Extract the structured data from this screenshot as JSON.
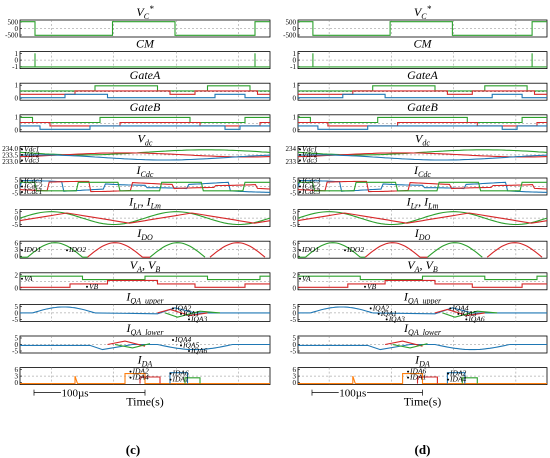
{
  "figure": {
    "panels": [
      {
        "label": "(c)",
        "time_label": "Time(s)",
        "scale_label": "100µs",
        "rows": [
          {
            "title": "V_C*",
            "title_main": "V",
            "title_sub": "C",
            "title_sup": "*",
            "ticks": [
              "500",
              "0",
              "-500"
            ],
            "annotations": []
          },
          {
            "title": "CM",
            "title_main": "CM",
            "ticks": [
              "1",
              "0",
              "-1"
            ],
            "annotations": []
          },
          {
            "title": "GateA",
            "title_main": "GateA",
            "ticks": [
              "1",
              "0"
            ],
            "annotations": []
          },
          {
            "title": "GateB",
            "title_main": "GateB",
            "ticks": [
              "1",
              "0"
            ],
            "annotations": []
          },
          {
            "title": "V_dc",
            "title_main": "V",
            "title_sub": "dc",
            "ticks": [
              "234.0",
              "233.5",
              "233.0"
            ],
            "annotations": [
              "Vdc1",
              "Vdc2",
              "Vdc3"
            ]
          },
          {
            "title": "I_Cdc",
            "title_main": "I",
            "title_sub": "Cdc",
            "ticks": [
              "5",
              "0",
              "-5"
            ],
            "annotations": [
              "ICdc3",
              "ICdc2",
              "ICdc1"
            ]
          },
          {
            "title": "I_Lr, I_Lm",
            "title_main": "I",
            "title_sub": "Lr",
            "title_rest": ", I",
            "title_sub2": "Lm",
            "ticks": [
              "5",
              "0",
              "-5"
            ],
            "annotations": []
          },
          {
            "title": "I_DO",
            "title_main": "I",
            "title_sub": "DO",
            "ticks": [
              "6",
              "3",
              "0"
            ],
            "annotations": [
              "IDO1",
              "IDO2"
            ]
          },
          {
            "title": "V_A, V_B",
            "title_main": "V",
            "title_sub": "A",
            "title_rest": ", V",
            "title_sub2": "B",
            "ticks": [
              "2",
              "0"
            ],
            "annotations": [
              "VA",
              "VB"
            ]
          },
          {
            "title": "I_QA_upper",
            "title_main": "I",
            "title_sub": "QA_upper",
            "ticks": [
              "5",
              "0",
              "-5"
            ],
            "annotations": [
              "IQA2",
              "IQA1",
              "IQA3"
            ]
          },
          {
            "title": "I_QA_lower",
            "title_main": "I",
            "title_sub": "QA_lower",
            "ticks": [
              "5",
              "0",
              "-5"
            ],
            "annotations": [
              "IQA4",
              "IQA5",
              "IQA6"
            ]
          },
          {
            "title": "I_DA",
            "title_main": "I",
            "title_sub": "DA",
            "ticks": [
              "6",
              "3",
              "0"
            ],
            "annotations": [
              "IDA2",
              "IDA6",
              "IDA4",
              "IDA1"
            ]
          }
        ]
      },
      {
        "label": "(d)",
        "time_label": "Time(s)",
        "scale_label": "100µs",
        "rows": [
          {
            "title": "V_C*",
            "title_main": "V",
            "title_sub": "C",
            "title_sup": "*",
            "ticks": [
              "500",
              "0",
              "-500"
            ],
            "annotations": []
          },
          {
            "title": "CM",
            "title_main": "CM",
            "ticks": [
              "1",
              "0",
              "-1"
            ],
            "annotations": []
          },
          {
            "title": "GateA",
            "title_main": "GateA",
            "ticks": [
              "1",
              "0"
            ],
            "annotations": []
          },
          {
            "title": "GateB",
            "title_main": "GateB",
            "ticks": [
              "1",
              "0"
            ],
            "annotations": []
          },
          {
            "title": "V_dc",
            "title_main": "V",
            "title_sub": "dc",
            "ticks": [
              "234",
              "233"
            ],
            "annotations": [
              "Vdc1",
              "Vdc2",
              "Vdc3"
            ]
          },
          {
            "title": "I_Cdc",
            "title_main": "I",
            "title_sub": "Cdc",
            "ticks": [
              "5",
              "0",
              "-5"
            ],
            "annotations": [
              "ICdc3",
              "ICdc2",
              "ICdc3"
            ]
          },
          {
            "title": "I_Lr, I_Lm",
            "title_main": "I",
            "title_sub": "Lr",
            "title_rest": ", I",
            "title_sub2": "Lm",
            "ticks": [
              "5",
              "0",
              "-5"
            ],
            "annotations": []
          },
          {
            "title": "I_DO",
            "title_main": "I",
            "title_sub": "DO",
            "ticks": [
              "6",
              "3",
              "0"
            ],
            "annotations": [
              "IDO1",
              "IDO2"
            ]
          },
          {
            "title": "V_A, V_B",
            "title_main": "V",
            "title_sub": "A",
            "title_rest": ", V",
            "title_sub2": "B",
            "ticks": [
              "2",
              "0"
            ],
            "annotations": [
              "VA",
              "VB"
            ]
          },
          {
            "title": "I_QA_upper",
            "title_main": "I",
            "title_sub": "QA_upper",
            "ticks": [
              "5",
              "0",
              "-5"
            ],
            "annotations": [
              "IQA4",
              "IQA5",
              "IQA6",
              "IQA2",
              "IQA1",
              "IQA3"
            ]
          },
          {
            "title": "I_QA_lower",
            "title_main": "I",
            "title_sub": "QA_lower",
            "ticks": [
              "5",
              "0",
              "-5"
            ],
            "annotations": []
          },
          {
            "title": "I_DA",
            "title_main": "I",
            "title_sub": "DA",
            "ticks": [
              "6",
              "3",
              "0"
            ],
            "annotations": [
              "IDA6",
              "IDA2",
              "IDA1",
              "IDA4"
            ]
          }
        ]
      }
    ]
  },
  "chart_data": [
    {
      "type": "line",
      "panel": "(c)",
      "xlabel": "Time(s)",
      "x_scale_bar": "100µs",
      "subplots": [
        {
          "name": "V_C*",
          "ylim": [
            -500,
            500
          ],
          "series": [
            {
              "color": "#2ca02c",
              "pattern": "square wave ±500"
            }
          ]
        },
        {
          "name": "CM",
          "ylim": [
            -1,
            1
          ],
          "series": [
            {
              "color": "#2ca02c",
              "values": [
                -1,
                -1,
                -1
              ]
            }
          ]
        },
        {
          "name": "GateA",
          "ylim": [
            0,
            1
          ],
          "series": [
            {
              "color": "#2ca02c"
            },
            {
              "color": "#d62728"
            },
            {
              "color": "#1f77b4"
            }
          ]
        },
        {
          "name": "GateB",
          "ylim": [
            0,
            1
          ],
          "series": [
            {
              "color": "#2ca02c"
            },
            {
              "color": "#d62728"
            },
            {
              "color": "#1f77b4"
            }
          ]
        },
        {
          "name": "V_dc",
          "ylim": [
            233.0,
            234.0
          ],
          "series": [
            {
              "name": "Vdc1",
              "color": "#2ca02c"
            },
            {
              "name": "Vdc2",
              "color": "#d62728"
            },
            {
              "name": "Vdc3",
              "color": "#1f77b4"
            }
          ]
        },
        {
          "name": "I_Cdc",
          "ylim": [
            -5,
            5
          ],
          "series": [
            {
              "name": "ICdc1",
              "color": "#2ca02c"
            },
            {
              "name": "ICdc2",
              "color": "#d62728"
            },
            {
              "name": "ICdc3",
              "color": "#1f77b4"
            }
          ]
        },
        {
          "name": "I_Lr, I_Lm",
          "ylim": [
            -5,
            5
          ],
          "series": [
            {
              "color": "#2ca02c"
            },
            {
              "color": "#d62728"
            }
          ]
        },
        {
          "name": "I_DO",
          "ylim": [
            0,
            6
          ],
          "series": [
            {
              "name": "IDO1",
              "color": "#2ca02c"
            },
            {
              "name": "IDO2",
              "color": "#d62728"
            }
          ]
        },
        {
          "name": "V_A, V_B",
          "ylim": [
            0,
            2
          ],
          "series": [
            {
              "name": "VA",
              "color": "#2ca02c"
            },
            {
              "name": "VB",
              "color": "#d62728"
            }
          ]
        },
        {
          "name": "I_QA_upper",
          "ylim": [
            -5,
            5
          ],
          "series": [
            {
              "color": "#1f77b4"
            },
            {
              "color": "#d62728"
            },
            {
              "color": "#2ca02c"
            }
          ]
        },
        {
          "name": "I_QA_lower",
          "ylim": [
            -5,
            5
          ],
          "series": [
            {
              "color": "#1f77b4"
            },
            {
              "color": "#d62728"
            },
            {
              "color": "#2ca02c"
            }
          ]
        },
        {
          "name": "I_DA",
          "ylim": [
            0,
            6
          ],
          "series": [
            {
              "color": "#ff7f0e"
            },
            {
              "color": "#d62728"
            },
            {
              "color": "#1f77b4"
            },
            {
              "color": "#2ca02c"
            }
          ]
        }
      ]
    },
    {
      "type": "line",
      "panel": "(d)",
      "xlabel": "Time(s)",
      "x_scale_bar": "100µs",
      "subplots": [
        {
          "name": "V_C*",
          "ylim": [
            -500,
            500
          ],
          "series": [
            {
              "color": "#2ca02c",
              "pattern": "square wave ±500"
            }
          ]
        },
        {
          "name": "CM",
          "ylim": [
            -1,
            1
          ],
          "series": [
            {
              "color": "#2ca02c",
              "values": [
                -1,
                -1,
                -1
              ]
            }
          ]
        },
        {
          "name": "GateA",
          "ylim": [
            0,
            1
          ],
          "series": [
            {
              "color": "#2ca02c"
            },
            {
              "color": "#d62728"
            },
            {
              "color": "#1f77b4"
            }
          ]
        },
        {
          "name": "GateB",
          "ylim": [
            0,
            1
          ],
          "series": [
            {
              "color": "#2ca02c"
            },
            {
              "color": "#d62728"
            },
            {
              "color": "#1f77b4"
            }
          ]
        },
        {
          "name": "V_dc",
          "ylim": [
            233,
            234
          ],
          "series": [
            {
              "name": "Vdc1",
              "color": "#2ca02c"
            },
            {
              "name": "Vdc2",
              "color": "#d62728"
            },
            {
              "name": "Vdc3",
              "color": "#1f77b4"
            }
          ]
        },
        {
          "name": "I_Cdc",
          "ylim": [
            -5,
            5
          ],
          "series": [
            {
              "color": "#2ca02c"
            },
            {
              "color": "#d62728"
            },
            {
              "color": "#1f77b4"
            }
          ]
        },
        {
          "name": "I_Lr, I_Lm",
          "ylim": [
            -5,
            5
          ],
          "series": [
            {
              "color": "#2ca02c"
            },
            {
              "color": "#d62728"
            }
          ]
        },
        {
          "name": "I_DO",
          "ylim": [
            0,
            6
          ],
          "series": [
            {
              "name": "IDO1",
              "color": "#2ca02c"
            },
            {
              "name": "IDO2",
              "color": "#d62728"
            }
          ]
        },
        {
          "name": "V_A, V_B",
          "ylim": [
            0,
            2
          ],
          "series": [
            {
              "name": "VA",
              "color": "#2ca02c"
            },
            {
              "name": "VB",
              "color": "#d62728"
            }
          ]
        },
        {
          "name": "I_QA_upper",
          "ylim": [
            -5,
            5
          ],
          "series": [
            {
              "color": "#1f77b4"
            },
            {
              "color": "#d62728"
            },
            {
              "color": "#2ca02c"
            }
          ]
        },
        {
          "name": "I_QA_lower",
          "ylim": [
            -5,
            5
          ],
          "series": [
            {
              "color": "#1f77b4"
            },
            {
              "color": "#d62728"
            },
            {
              "color": "#2ca02c"
            }
          ]
        },
        {
          "name": "I_DA",
          "ylim": [
            0,
            6
          ],
          "series": [
            {
              "color": "#ff7f0e"
            },
            {
              "color": "#d62728"
            },
            {
              "color": "#1f77b4"
            },
            {
              "color": "#2ca02c"
            }
          ]
        }
      ]
    }
  ],
  "colors": {
    "green": "#2ca02c",
    "red": "#d62728",
    "blue": "#1f77b4",
    "orange": "#ff7f0e",
    "grid": "#888888"
  }
}
